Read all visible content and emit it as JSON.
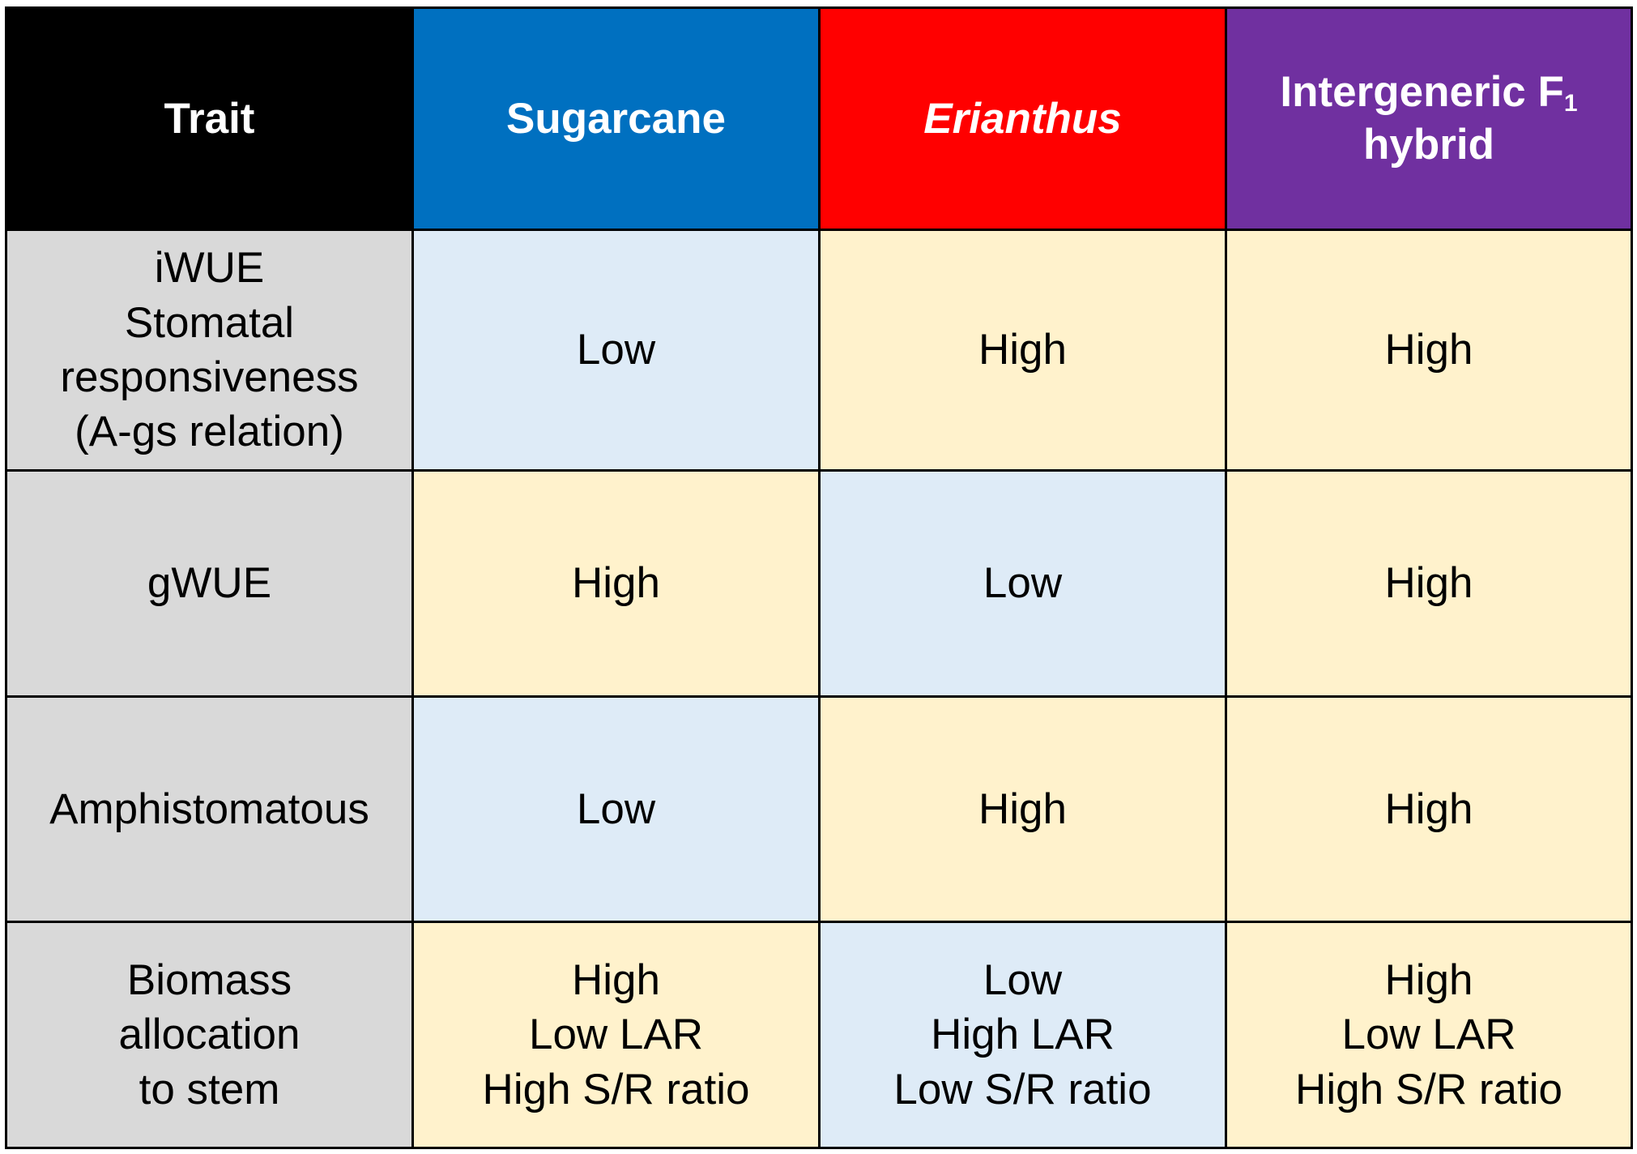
{
  "colors": {
    "header_trait": "#000000",
    "header_sugarcane": "#0070c0",
    "header_erianthus": "#ff0000",
    "header_hybrid": "#7030a0",
    "trait_cell": "#d9d9d9",
    "low_cell": "#deebf7",
    "high_cell": "#fff2cc"
  },
  "table": {
    "headers": {
      "trait": "Trait",
      "sugarcane": "Sugarcane",
      "erianthus": "Erianthus",
      "hybrid_line1": "Intergeneric F",
      "hybrid_subscript": "1",
      "hybrid_line2": "hybrid"
    },
    "rows": [
      {
        "trait": [
          "iWUE",
          "Stomatal",
          "responsiveness",
          "(A-gs relation)"
        ],
        "sugarcane": [
          "Low"
        ],
        "erianthus": [
          "High"
        ],
        "hybrid": [
          "High"
        ]
      },
      {
        "trait": [
          "gWUE"
        ],
        "sugarcane": [
          "High"
        ],
        "erianthus": [
          "Low"
        ],
        "hybrid": [
          "High"
        ]
      },
      {
        "trait": [
          "Amphistomatous"
        ],
        "sugarcane": [
          "Low"
        ],
        "erianthus": [
          "High"
        ],
        "hybrid": [
          "High"
        ]
      },
      {
        "trait": [
          "Biomass",
          "allocation",
          "to stem"
        ],
        "sugarcane": [
          "High",
          "Low LAR",
          "High S/R ratio"
        ],
        "erianthus": [
          "Low",
          "High LAR",
          "Low S/R ratio"
        ],
        "hybrid": [
          "High",
          "Low LAR",
          "High S/R ratio"
        ]
      }
    ]
  }
}
